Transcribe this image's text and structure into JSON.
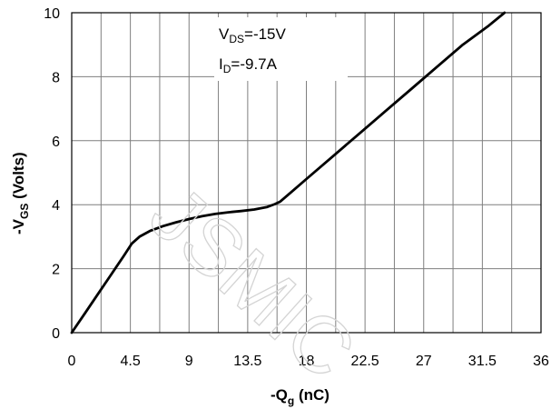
{
  "chart_data": {
    "type": "line",
    "xlabel": {
      "main": "-Q",
      "sub": "g",
      "suffix": " (nC)"
    },
    "ylabel": {
      "main": "-V",
      "sub": "GS",
      "suffix": " (Volts)"
    },
    "xlim": [
      0,
      36
    ],
    "ylim": [
      0,
      10
    ],
    "xticks": [
      0,
      4.5,
      9,
      13.5,
      18,
      22.5,
      27,
      31.5,
      36
    ],
    "xtick_labels": [
      "0",
      "4.5",
      "9",
      "13.5",
      "18",
      "22.5",
      "27",
      "31.5",
      "36"
    ],
    "yticks": [
      0,
      2,
      4,
      6,
      8,
      10
    ],
    "ytick_labels": [
      "0",
      "2",
      "4",
      "6",
      "8",
      "10"
    ],
    "x_gridlines": [
      0,
      2.25,
      4.5,
      6.75,
      9,
      11.25,
      13.5,
      15.75,
      18,
      20.25,
      22.5,
      24.75,
      27,
      29.25,
      31.5,
      33.75,
      36
    ],
    "y_gridlines": [
      0,
      2,
      4,
      6,
      8,
      10
    ],
    "grid": true,
    "legend": "none",
    "annotations": [
      {
        "main": "V",
        "sub": "DS",
        "suffix": "=-15V"
      },
      {
        "main": "I",
        "sub": "D",
        "suffix": "=-9.7A"
      }
    ],
    "series": [
      {
        "x": [
          0,
          1,
          2,
          3,
          4,
          4.6,
          5.2,
          6,
          7,
          8,
          9,
          10,
          11,
          12,
          13,
          14,
          15,
          15.6,
          16,
          17,
          18,
          20,
          22,
          24,
          26,
          28,
          30,
          32,
          33.2
        ],
        "y": [
          0,
          0.6,
          1.2,
          1.8,
          2.4,
          2.78,
          3.0,
          3.18,
          3.33,
          3.45,
          3.55,
          3.64,
          3.71,
          3.76,
          3.8,
          3.85,
          3.93,
          4.02,
          4.1,
          4.45,
          4.8,
          5.5,
          6.2,
          6.9,
          7.6,
          8.3,
          9.0,
          9.6,
          10.0
        ]
      }
    ]
  },
  "watermark": "JSMIC"
}
